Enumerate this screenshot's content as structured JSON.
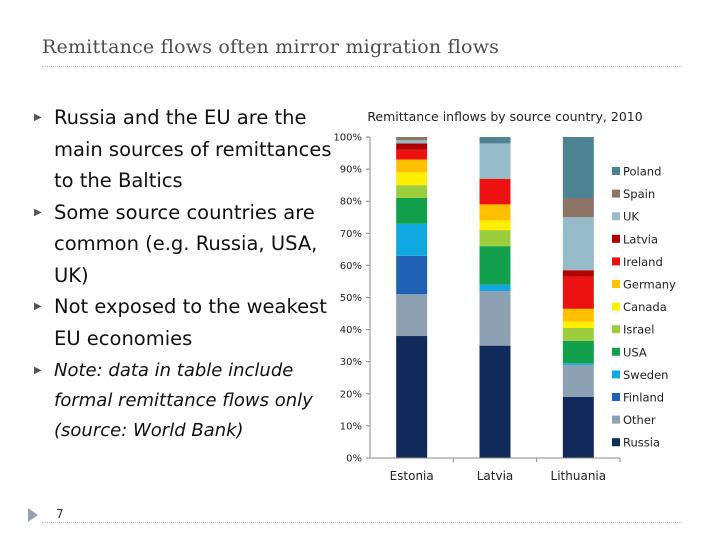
{
  "slide": {
    "title": "Remittance flows often mirror migration flows",
    "bullets": [
      "Russia and the EU are the main sources of remittances to the Baltics",
      " Some source countries are common (e.g. Russia, USA, UK)",
      "Not exposed to the weakest EU economies",
      "Note: data in table include formal remittance flows only (source: World Bank)"
    ],
    "page_number": "7"
  },
  "chart_data": {
    "type": "bar",
    "stacked": true,
    "title": "Remittance inflows by source country, 2010",
    "xlabel": "",
    "ylabel": "",
    "categories": [
      "Estonia",
      "Latvia",
      "Lithuania"
    ],
    "ylim": [
      0,
      100
    ],
    "yticks": [
      "0%",
      "10%",
      "20%",
      "30%",
      "40%",
      "50%",
      "60%",
      "70%",
      "80%",
      "90%",
      "100%"
    ],
    "legend_position": "right",
    "series": [
      {
        "name": "Russia",
        "color": "#102a5c",
        "values": [
          38,
          35,
          19
        ]
      },
      {
        "name": "Other",
        "color": "#8ea1b3",
        "values": [
          13,
          17,
          10
        ]
      },
      {
        "name": "Finland",
        "color": "#1f62b3",
        "values": [
          12,
          0,
          0
        ]
      },
      {
        "name": "Sweden",
        "color": "#10a8e0",
        "values": [
          10,
          2,
          0.5
        ]
      },
      {
        "name": "USA",
        "color": "#12a04c",
        "values": [
          8,
          12,
          7
        ]
      },
      {
        "name": "Israel",
        "color": "#9cce3c",
        "values": [
          4,
          5,
          4
        ]
      },
      {
        "name": "Canada",
        "color": "#ffee00",
        "values": [
          4,
          3,
          2
        ]
      },
      {
        "name": "Germany",
        "color": "#ffc000",
        "values": [
          4,
          5,
          4
        ]
      },
      {
        "name": "Ireland",
        "color": "#ee1111",
        "values": [
          3,
          8,
          10
        ]
      },
      {
        "name": "Latvia",
        "color": "#b00000",
        "values": [
          2,
          0,
          2
        ]
      },
      {
        "name": "UK",
        "color": "#95bcc8",
        "values": [
          1,
          11,
          16.5
        ]
      },
      {
        "name": "Spain",
        "color": "#8c7466",
        "values": [
          1,
          0,
          6
        ]
      },
      {
        "name": "Poland",
        "color": "#4d8393",
        "values": [
          0,
          2,
          19
        ]
      }
    ]
  }
}
